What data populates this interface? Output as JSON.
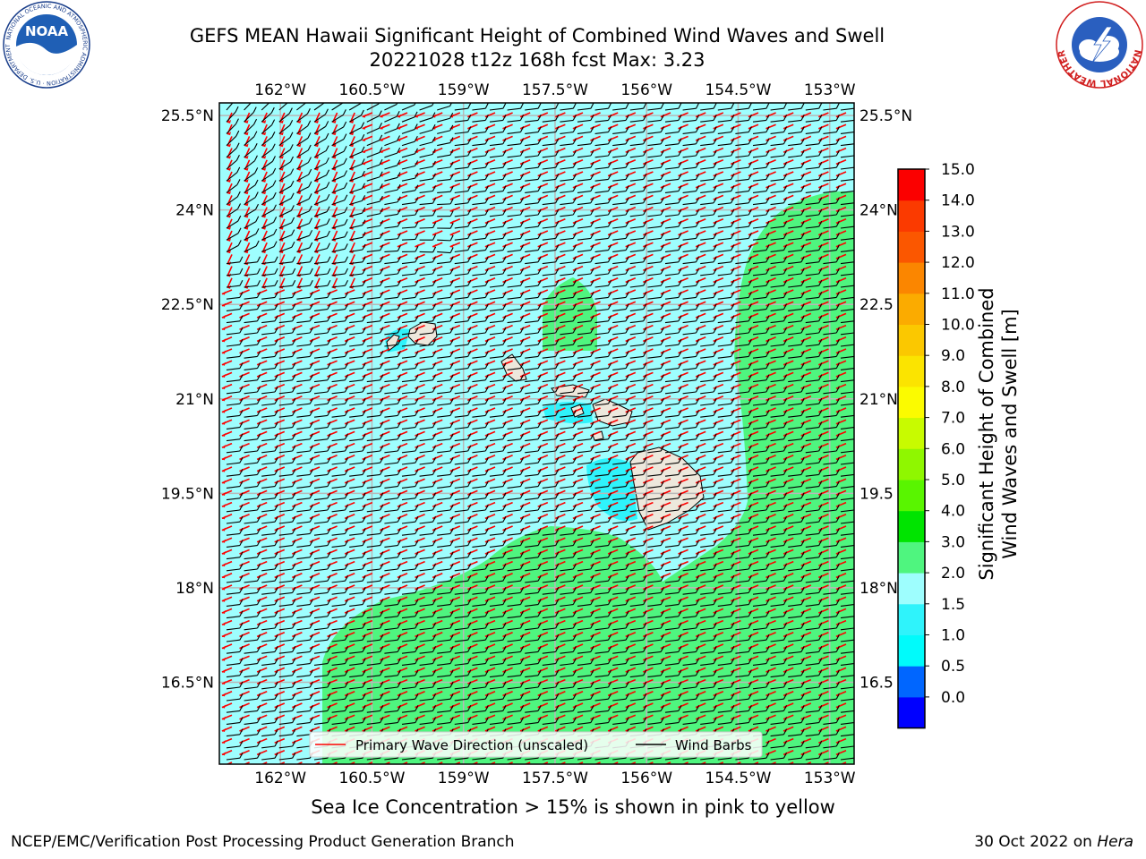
{
  "title": {
    "line1": "GEFS MEAN Hawaii Significant Height of Combined Wind Waves and Swell",
    "line2": "20221028 t12z 168h fcst   Max: 3.23"
  },
  "logos": {
    "left": "noaa-logo",
    "left_ring_text": "NATIONAL OCEANIC AND ATMOSPHERIC ADMINISTRATION · U.S. DEPARTMENT OF COMMERCE",
    "left_center_text": "NOAA",
    "right": "national-weather-service-logo",
    "right_ring_text": "NATIONAL WEATHER SERVICE"
  },
  "map": {
    "lon_labels": [
      "162°W",
      "160.5°W",
      "159°W",
      "157.5°W",
      "156°W",
      "154.5°W",
      "153°W"
    ],
    "lon_values": [
      -162,
      -160.5,
      -159,
      -157.5,
      -156,
      -154.5,
      -153
    ],
    "lat_labels": [
      "25.5°N",
      "24°N",
      "22.5°N",
      "21°N",
      "19.5°N",
      "18°N",
      "16.5°N"
    ],
    "lat_values": [
      25.5,
      24,
      22.5,
      21,
      19.5,
      18,
      16.5
    ],
    "right_lat_labels": [
      "25.5°N",
      "24°N",
      "22.5",
      "21°N",
      "19.5",
      "18°N",
      "16.5"
    ],
    "extent": {
      "lon_min": -163,
      "lon_max": -152.6,
      "lat_min": 15.2,
      "lat_max": 25.7
    },
    "islands": [
      "Niihau",
      "Kauai",
      "Oahu",
      "Molokai",
      "Maui",
      "Lanai",
      "Kahoolawe",
      "Hawaii"
    ],
    "legend": {
      "primary_wave_direction": "Primary Wave Direction (unscaled)",
      "wind_barbs": "Wind Barbs",
      "primary_wave_color": "#ff0000",
      "wind_barb_color": "#000000"
    },
    "field_colors": {
      "2.0-3.0": "#9efefe",
      "3.0-4.0": "#4ff57f",
      "1.5-2.0": "#2ff3fb",
      "land": "#ede8dc"
    }
  },
  "colorbar": {
    "label_line1": "Significant Height of Combined",
    "label_line2": "Wind Waves and Swell [m]",
    "ticks": [
      "15.0",
      "14.0",
      "13.0",
      "12.0",
      "11.0",
      "10.0",
      "9.0",
      "8.0",
      "7.0",
      "6.0",
      "5.0",
      "4.0",
      "3.0",
      "2.0",
      "1.5",
      "1.0",
      "0.5",
      "0.0"
    ],
    "colors_bottom_to_top": [
      "#0000ff",
      "#0066ff",
      "#00fbfb",
      "#2ff3fb",
      "#9efefe",
      "#4ff57f",
      "#00e400",
      "#59f500",
      "#8ff700",
      "#c8fb00",
      "#fbfb00",
      "#fbe400",
      "#fbc800",
      "#fbab00",
      "#fb8600",
      "#fb5700",
      "#fb3a00",
      "#fb0000"
    ]
  },
  "note": "Sea Ice Concentration > 15% is shown in pink to yellow",
  "footer": {
    "left": "NCEP/EMC/Verification Post Processing Product Generation Branch",
    "right_date": "30 Oct 2022 on ",
    "right_host": "Hera"
  }
}
